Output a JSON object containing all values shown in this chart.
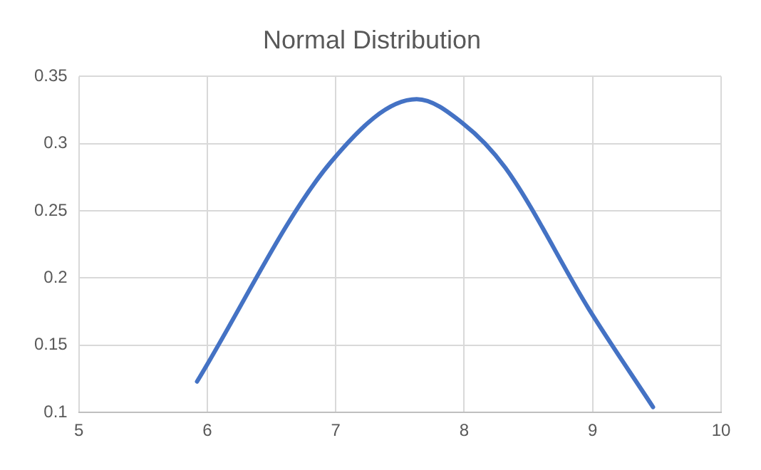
{
  "chart_data": {
    "type": "line",
    "title": "Normal Distribution",
    "series": [
      {
        "color": "#4472c4",
        "x": [
          5.92,
          6.96,
          7.63,
          7.99,
          8.32,
          8.97,
          9.47
        ],
        "values": [
          0.123,
          0.286,
          0.333,
          0.315,
          0.282,
          0.177,
          0.104
        ]
      }
    ],
    "xlim": [
      5,
      10
    ],
    "xticks": [
      5,
      6,
      7,
      8,
      9,
      10
    ],
    "ylim": [
      0.1,
      0.35
    ],
    "yticks": [
      0.1,
      0.15,
      0.2,
      0.25,
      0.3,
      0.35
    ],
    "grid": true,
    "legend": false,
    "marker": "none",
    "line_style": "solid"
  }
}
